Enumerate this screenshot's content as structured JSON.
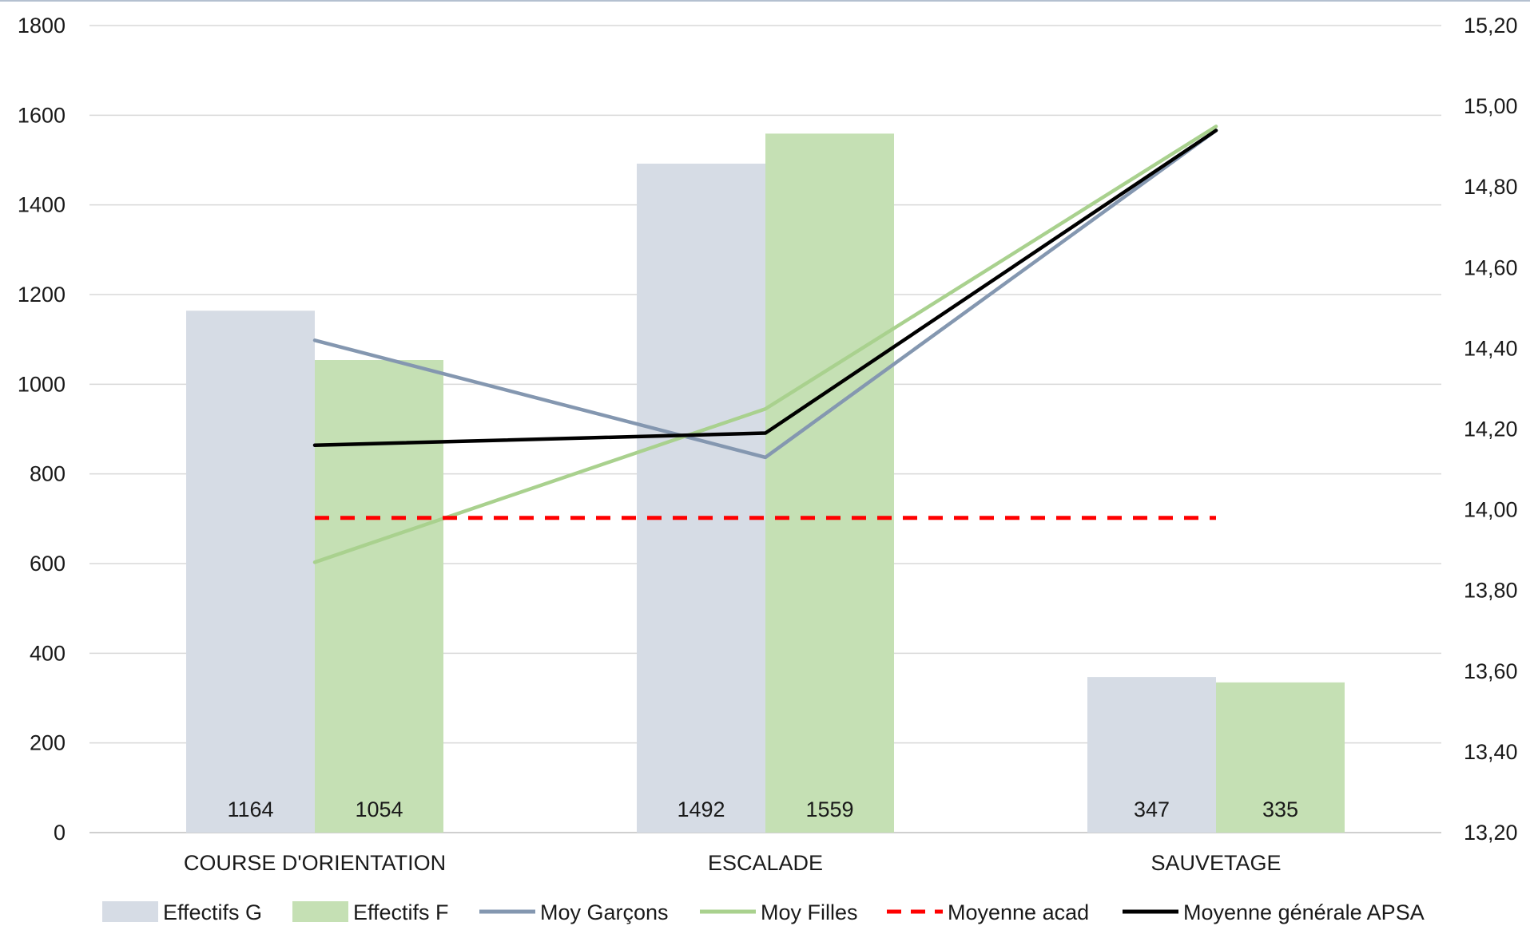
{
  "chart_data": {
    "type": "bar",
    "categories": [
      "COURSE D'ORIENTATION",
      "ESCALADE",
      "SAUVETAGE"
    ],
    "bar_series": [
      {
        "name": "Effectifs G",
        "values": [
          1164,
          1492,
          347
        ],
        "color": "#d6dce5",
        "axis": "left"
      },
      {
        "name": "Effectifs F",
        "values": [
          1054,
          1559,
          335
        ],
        "color": "#c5e0b4",
        "axis": "left"
      }
    ],
    "line_series": [
      {
        "name": "Moy Garçons",
        "values": [
          14.42,
          14.13,
          14.94
        ],
        "color": "#8497b0",
        "style": "solid",
        "axis": "right"
      },
      {
        "name": "Moy Filles",
        "values": [
          13.87,
          14.25,
          14.95
        ],
        "color": "#a9d18e",
        "style": "solid",
        "axis": "right"
      },
      {
        "name": "Moyenne acad",
        "values": [
          13.98,
          13.98,
          13.98
        ],
        "color": "#ff0000",
        "style": "dashed",
        "axis": "right"
      },
      {
        "name": "Moyenne générale APSA",
        "values": [
          14.16,
          14.19,
          14.94
        ],
        "color": "#000000",
        "style": "solid",
        "axis": "right"
      }
    ],
    "left_axis": {
      "ylim": [
        0,
        1800
      ],
      "ticks": [
        "0",
        "200",
        "400",
        "600",
        "800",
        "1000",
        "1200",
        "1400",
        "1600",
        "1800"
      ]
    },
    "right_axis": {
      "ylim": [
        13.2,
        15.2
      ],
      "ticks": [
        "13,20",
        "13,40",
        "13,60",
        "13,80",
        "14,00",
        "14,20",
        "14,40",
        "14,60",
        "14,80",
        "15,00",
        "15,20"
      ]
    },
    "data_labels": [
      "1164",
      "1054",
      "1492",
      "1559",
      "347",
      "335"
    ],
    "grid": true,
    "legend_position": "bottom"
  }
}
